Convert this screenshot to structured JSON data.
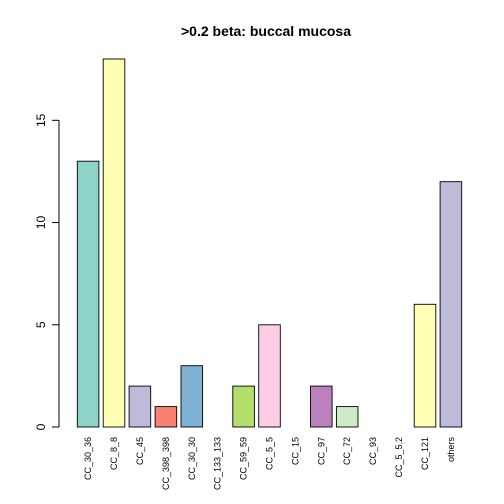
{
  "chart_data": {
    "type": "bar",
    "title": ">0.2 beta:  buccal mucosa",
    "xlabel": "",
    "ylabel": "",
    "ylim": [
      0,
      18
    ],
    "yticks": [
      0,
      5,
      10,
      15
    ],
    "yticks_text": [
      "0",
      "5",
      "10",
      "15"
    ],
    "grid": false,
    "categories": [
      "CC_30_36",
      "CC_8_8",
      "CC_45",
      "CC_398_398",
      "CC_30_30",
      "CC_133_133",
      "CC_59_59",
      "CC_5_5",
      "CC_15",
      "CC_97",
      "CC_72",
      "CC_93",
      "CC_5_5.2",
      "CC_121",
      "others"
    ],
    "values": [
      13,
      18,
      2,
      1,
      3,
      0,
      2,
      5,
      0,
      2,
      1,
      0,
      0,
      6,
      12
    ],
    "colors": [
      "#8DD3C7",
      "#FFFFB3",
      "#BEBADA",
      "#FB8072",
      "#80B1D3",
      "#FDB462",
      "#B3DE69",
      "#FCCDE5",
      "#D9D9D9",
      "#BC80BD",
      "#CCEBC5",
      "#FFED6F",
      "#8DD3C7",
      "#FFFFB3",
      "#BEBADA"
    ]
  }
}
